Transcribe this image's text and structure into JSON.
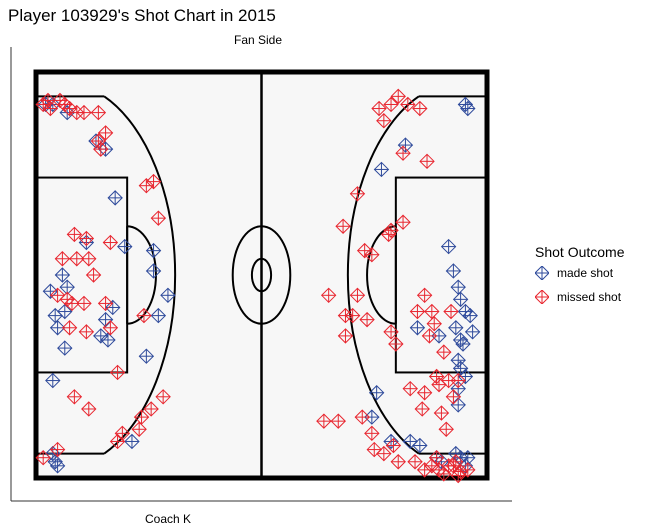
{
  "chart_data": {
    "type": "scatter",
    "title": "Player 103929's Shot Chart in 2015",
    "top_label": "Fan Side",
    "bottom_label": "Coach K",
    "court": {
      "length_ft": 94,
      "width_ft": 50
    },
    "legend": {
      "title": "Shot Outcome",
      "entries": [
        {
          "label": "made shot",
          "color": "#2E4A9B"
        },
        {
          "label": "missed shot",
          "color": "#E8262F"
        }
      ]
    },
    "series": [
      {
        "name": "made shot",
        "color": "#2E4A9B",
        "points": [
          [
            2.0,
            46.0
          ],
          [
            3.5,
            46.0
          ],
          [
            6.5,
            45.0
          ],
          [
            12.5,
            41.5
          ],
          [
            14.5,
            40.5
          ],
          [
            16.5,
            34.5
          ],
          [
            10.5,
            29.0
          ],
          [
            18.5,
            28.5
          ],
          [
            24.5,
            28.0
          ],
          [
            24.5,
            25.5
          ],
          [
            27.5,
            22.5
          ],
          [
            25.5,
            20.0
          ],
          [
            5.5,
            25.0
          ],
          [
            6.5,
            23.5
          ],
          [
            3.0,
            23.0
          ],
          [
            6.0,
            20.5
          ],
          [
            4.0,
            20.0
          ],
          [
            4.5,
            18.5
          ],
          [
            14.5,
            19.5
          ],
          [
            16.0,
            21.0
          ],
          [
            13.5,
            17.5
          ],
          [
            15.0,
            17.0
          ],
          [
            6.0,
            16.0
          ],
          [
            3.5,
            12.0
          ],
          [
            23.0,
            15.0
          ],
          [
            3.5,
            3.0
          ],
          [
            4.0,
            2.0
          ],
          [
            4.5,
            1.5
          ],
          [
            20.0,
            4.5
          ],
          [
            89.5,
            46.0
          ],
          [
            90.0,
            45.5
          ],
          [
            77.0,
            41.0
          ],
          [
            72.0,
            38.0
          ],
          [
            86.0,
            28.5
          ],
          [
            87.0,
            25.5
          ],
          [
            88.0,
            23.5
          ],
          [
            88.5,
            22.0
          ],
          [
            89.5,
            20.5
          ],
          [
            90.5,
            20.0
          ],
          [
            91.0,
            18.0
          ],
          [
            89.0,
            16.5
          ],
          [
            88.0,
            14.5
          ],
          [
            88.5,
            13.5
          ],
          [
            89.5,
            12.5
          ],
          [
            88.0,
            11.0
          ],
          [
            79.5,
            18.5
          ],
          [
            84.0,
            17.5
          ],
          [
            87.5,
            18.5
          ],
          [
            88.5,
            17.0
          ],
          [
            88.0,
            9.0
          ],
          [
            71.0,
            10.5
          ],
          [
            70.0,
            7.5
          ],
          [
            74.0,
            4.5
          ],
          [
            78.0,
            4.5
          ],
          [
            80.0,
            4.0
          ],
          [
            83.5,
            2.5
          ],
          [
            84.5,
            2.0
          ],
          [
            88.5,
            2.5
          ],
          [
            89.5,
            1.5
          ],
          [
            90.0,
            2.5
          ],
          [
            87.5,
            3.0
          ]
        ]
      },
      {
        "name": "missed shot",
        "color": "#E8262F",
        "points": [
          [
            1.5,
            46.0
          ],
          [
            2.5,
            46.5
          ],
          [
            3.0,
            45.5
          ],
          [
            5.0,
            46.5
          ],
          [
            6.0,
            46.0
          ],
          [
            7.0,
            45.5
          ],
          [
            8.5,
            45.0
          ],
          [
            10.0,
            45.0
          ],
          [
            13.0,
            45.0
          ],
          [
            14.5,
            42.5
          ],
          [
            13.5,
            40.5
          ],
          [
            13.0,
            41.5
          ],
          [
            24.5,
            36.5
          ],
          [
            23.0,
            36.0
          ],
          [
            25.5,
            32.0
          ],
          [
            8.0,
            30.0
          ],
          [
            10.5,
            29.5
          ],
          [
            15.5,
            29.0
          ],
          [
            8.5,
            27.0
          ],
          [
            11.0,
            27.0
          ],
          [
            12.0,
            25.0
          ],
          [
            5.5,
            27.0
          ],
          [
            4.5,
            22.5
          ],
          [
            6.5,
            22.0
          ],
          [
            7.5,
            21.5
          ],
          [
            7.0,
            18.5
          ],
          [
            10.0,
            21.5
          ],
          [
            14.5,
            21.5
          ],
          [
            15.5,
            18.5
          ],
          [
            10.5,
            18.0
          ],
          [
            22.5,
            20.0
          ],
          [
            17.0,
            13.0
          ],
          [
            8.0,
            10.0
          ],
          [
            11.0,
            8.5
          ],
          [
            26.5,
            10.0
          ],
          [
            24.0,
            8.5
          ],
          [
            22.0,
            7.5
          ],
          [
            21.5,
            6.0
          ],
          [
            18.0,
            5.5
          ],
          [
            17.0,
            4.5
          ],
          [
            1.5,
            2.5
          ],
          [
            4.5,
            3.5
          ],
          [
            71.5,
            45.5
          ],
          [
            72.5,
            44.0
          ],
          [
            74.0,
            46.0
          ],
          [
            75.5,
            47.0
          ],
          [
            77.5,
            46.0
          ],
          [
            80.0,
            45.5
          ],
          [
            76.5,
            40.0
          ],
          [
            81.5,
            39.0
          ],
          [
            67.0,
            35.0
          ],
          [
            64.0,
            31.0
          ],
          [
            73.5,
            30.0
          ],
          [
            76.5,
            31.5
          ],
          [
            74.0,
            30.5
          ],
          [
            70.0,
            27.5
          ],
          [
            68.5,
            28.0
          ],
          [
            67.0,
            22.5
          ],
          [
            69.0,
            19.5
          ],
          [
            61.0,
            22.5
          ],
          [
            64.5,
            20.0
          ],
          [
            64.5,
            17.5
          ],
          [
            66.0,
            20.0
          ],
          [
            74.0,
            18.0
          ],
          [
            75.0,
            16.5
          ],
          [
            79.5,
            20.5
          ],
          [
            81.0,
            22.5
          ],
          [
            82.5,
            20.5
          ],
          [
            83.0,
            19.0
          ],
          [
            82.0,
            17.5
          ],
          [
            86.5,
            20.5
          ],
          [
            85.0,
            15.5
          ],
          [
            88.0,
            12.0
          ],
          [
            83.5,
            12.5
          ],
          [
            81.0,
            10.5
          ],
          [
            80.5,
            8.5
          ],
          [
            78.0,
            11.0
          ],
          [
            84.0,
            11.5
          ],
          [
            84.5,
            8.0
          ],
          [
            86.0,
            12.0
          ],
          [
            87.0,
            10.0
          ],
          [
            85.5,
            6.0
          ],
          [
            63.0,
            7.0
          ],
          [
            60.0,
            7.0
          ],
          [
            68.0,
            7.5
          ],
          [
            70.0,
            5.5
          ],
          [
            70.5,
            3.5
          ],
          [
            72.5,
            3.0
          ],
          [
            74.5,
            4.0
          ],
          [
            75.5,
            2.0
          ],
          [
            79.0,
            2.0
          ],
          [
            81.0,
            1.0
          ],
          [
            82.5,
            1.5
          ],
          [
            83.5,
            2.5
          ],
          [
            84.0,
            1.0
          ],
          [
            86.0,
            1.5
          ],
          [
            87.0,
            1.5
          ],
          [
            87.5,
            2.0
          ],
          [
            88.5,
            0.8
          ],
          [
            90.0,
            1.0
          ],
          [
            88.0,
            0.3
          ],
          [
            85.0,
            0.5
          ]
        ]
      }
    ]
  }
}
